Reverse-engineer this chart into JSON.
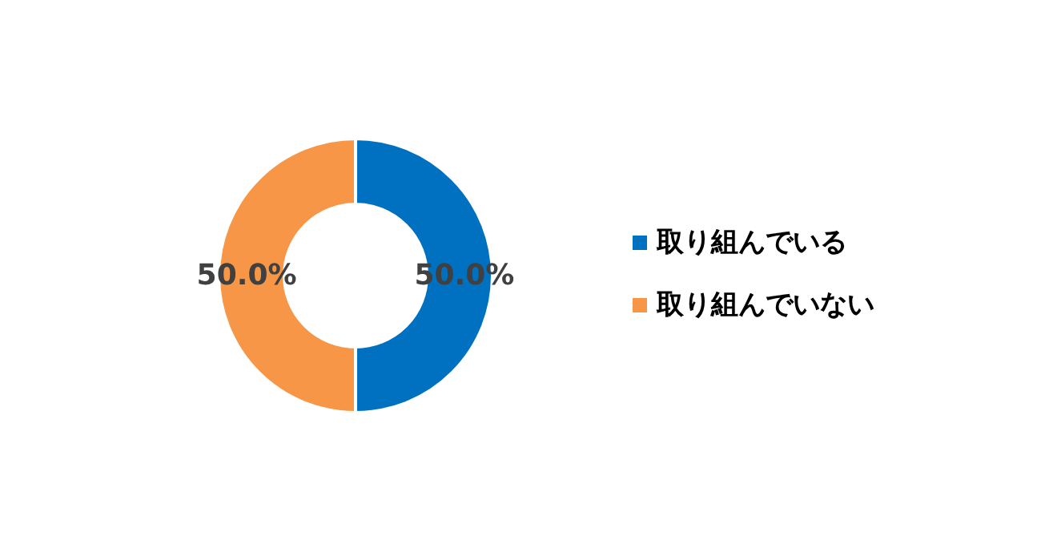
{
  "chart_data": {
    "type": "donut",
    "categories": [
      "取り組んでいる",
      "取り組んでいない"
    ],
    "values": [
      50,
      50
    ],
    "colors": [
      "#0070c0",
      "#f79646"
    ],
    "value_labels": [
      "50.0%",
      "50.0%"
    ],
    "legend": "right"
  }
}
